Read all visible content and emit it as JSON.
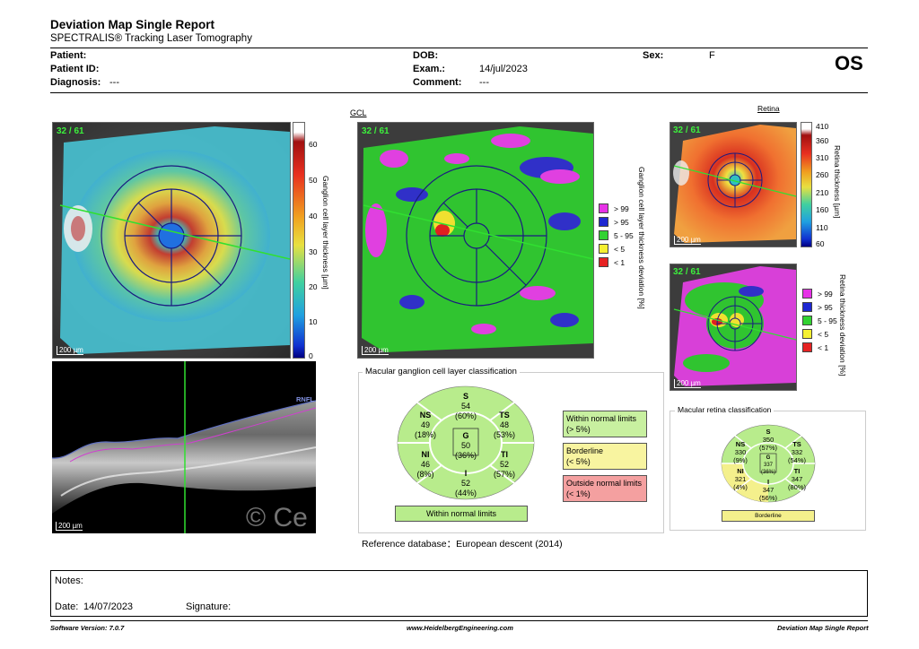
{
  "header": {
    "title": "Deviation Map Single Report",
    "subtitle": "SPECTRALIS® Tracking Laser Tomography"
  },
  "patient": {
    "patient_label": "Patient:",
    "patient_id_label": "Patient ID:",
    "diagnosis_label": "Diagnosis:",
    "diagnosis_value": "---",
    "dob_label": "DOB:",
    "exam_label": "Exam.:",
    "exam_value": "14/jul/2023",
    "comment_label": "Comment:",
    "comment_value": "---",
    "sex_label": "Sex:",
    "sex_value": "F",
    "eye": "OS"
  },
  "gcl_thickness_map": {
    "badge": "32 / 61",
    "scale": "200 µm",
    "colorbar_ticks": [
      "60",
      "50",
      "40",
      "30",
      "20",
      "10",
      "0"
    ],
    "colorbar_label": "Ganglion cell layer thickness [µm]"
  },
  "gcl_deviation_map": {
    "heading": "GCL",
    "badge": "32 / 61",
    "scale": "200 µm",
    "axis_label": "Ganglion cell layer thickness deviation [%]",
    "legend": [
      {
        "label": "> 99",
        "color": "#e632e6"
      },
      {
        "label": "> 95",
        "color": "#1e28d2"
      },
      {
        "label": "5 - 95",
        "color": "#32d232"
      },
      {
        "label": "< 5",
        "color": "#f5f032"
      },
      {
        "label": "< 1",
        "color": "#e62323"
      }
    ]
  },
  "retina_thickness_map": {
    "heading": "Retina",
    "badge": "32 / 61",
    "scale": "200 µm",
    "colorbar_ticks": [
      "410",
      "360",
      "310",
      "260",
      "210",
      "160",
      "110",
      "60"
    ],
    "colorbar_label": "Retina thickness [µm]"
  },
  "retina_deviation_map": {
    "badge": "32 / 61",
    "scale": "200 µm",
    "axis_label": "Retina thickness deviation [%]",
    "legend": [
      {
        "label": "> 99",
        "color": "#e632e6"
      },
      {
        "label": "> 95",
        "color": "#1e28d2"
      },
      {
        "label": "5 - 95",
        "color": "#32d232"
      },
      {
        "label": "< 5",
        "color": "#f5f032"
      },
      {
        "label": "< 1",
        "color": "#e62323"
      }
    ]
  },
  "bscan": {
    "layer_tag": "RNFL",
    "scale": "200 µm",
    "watermark": "© Ce"
  },
  "gcl_classification": {
    "title": "Macular ganglion cell layer classification",
    "sectors": {
      "S": {
        "name": "S",
        "value": "54",
        "pct": "(60%)"
      },
      "NS": {
        "name": "NS",
        "value": "49",
        "pct": "(18%)"
      },
      "TS": {
        "name": "TS",
        "value": "48",
        "pct": "(53%)"
      },
      "G": {
        "name": "G",
        "value": "50",
        "pct": "(36%)"
      },
      "NI": {
        "name": "NI",
        "value": "46",
        "pct": "(8%)"
      },
      "TI": {
        "name": "TI",
        "value": "52",
        "pct": "(57%)"
      },
      "I": {
        "name": "I",
        "value": "52",
        "pct": "(44%)"
      }
    },
    "result": "Within normal limits",
    "key": [
      {
        "line1": "Within normal limits",
        "line2": "(> 5%)",
        "color": "#c8f0a0"
      },
      {
        "line1": "Borderline",
        "line2": "(< 5%)",
        "color": "#f8f4a0"
      },
      {
        "line1": "Outside normal limits",
        "line2": "(< 1%)",
        "color": "#f4a0a0"
      }
    ],
    "colors": {
      "normal": "#b8ec8c",
      "borderline": "#f4f08c"
    }
  },
  "retina_classification": {
    "title": "Macular retina classification",
    "sectors": {
      "S": {
        "name": "S",
        "value": "350",
        "pct": "(57%)"
      },
      "NS": {
        "name": "NS",
        "value": "330",
        "pct": "(9%)"
      },
      "TS": {
        "name": "TS",
        "value": "332",
        "pct": "(54%)"
      },
      "G": {
        "name": "G",
        "value": "337",
        "pct": "(36%)"
      },
      "NI": {
        "name": "NI",
        "value": "321",
        "pct": "(4%)"
      },
      "TI": {
        "name": "TI",
        "value": "347",
        "pct": "(80%)"
      },
      "I": {
        "name": "I",
        "value": "347",
        "pct": "(56%)"
      }
    },
    "result": "Borderline"
  },
  "reference": {
    "label": "Reference database：",
    "value": "European descent (2014)"
  },
  "notes": {
    "notes_label": "Notes:",
    "date_label": "Date:",
    "date_value": "14/07/2023",
    "signature_label": "Signature:"
  },
  "footer": {
    "software": "Software Version: 7.0.7",
    "website": "www.HeidelbergEngineering.com",
    "report_name": "Deviation Map Single Report"
  }
}
